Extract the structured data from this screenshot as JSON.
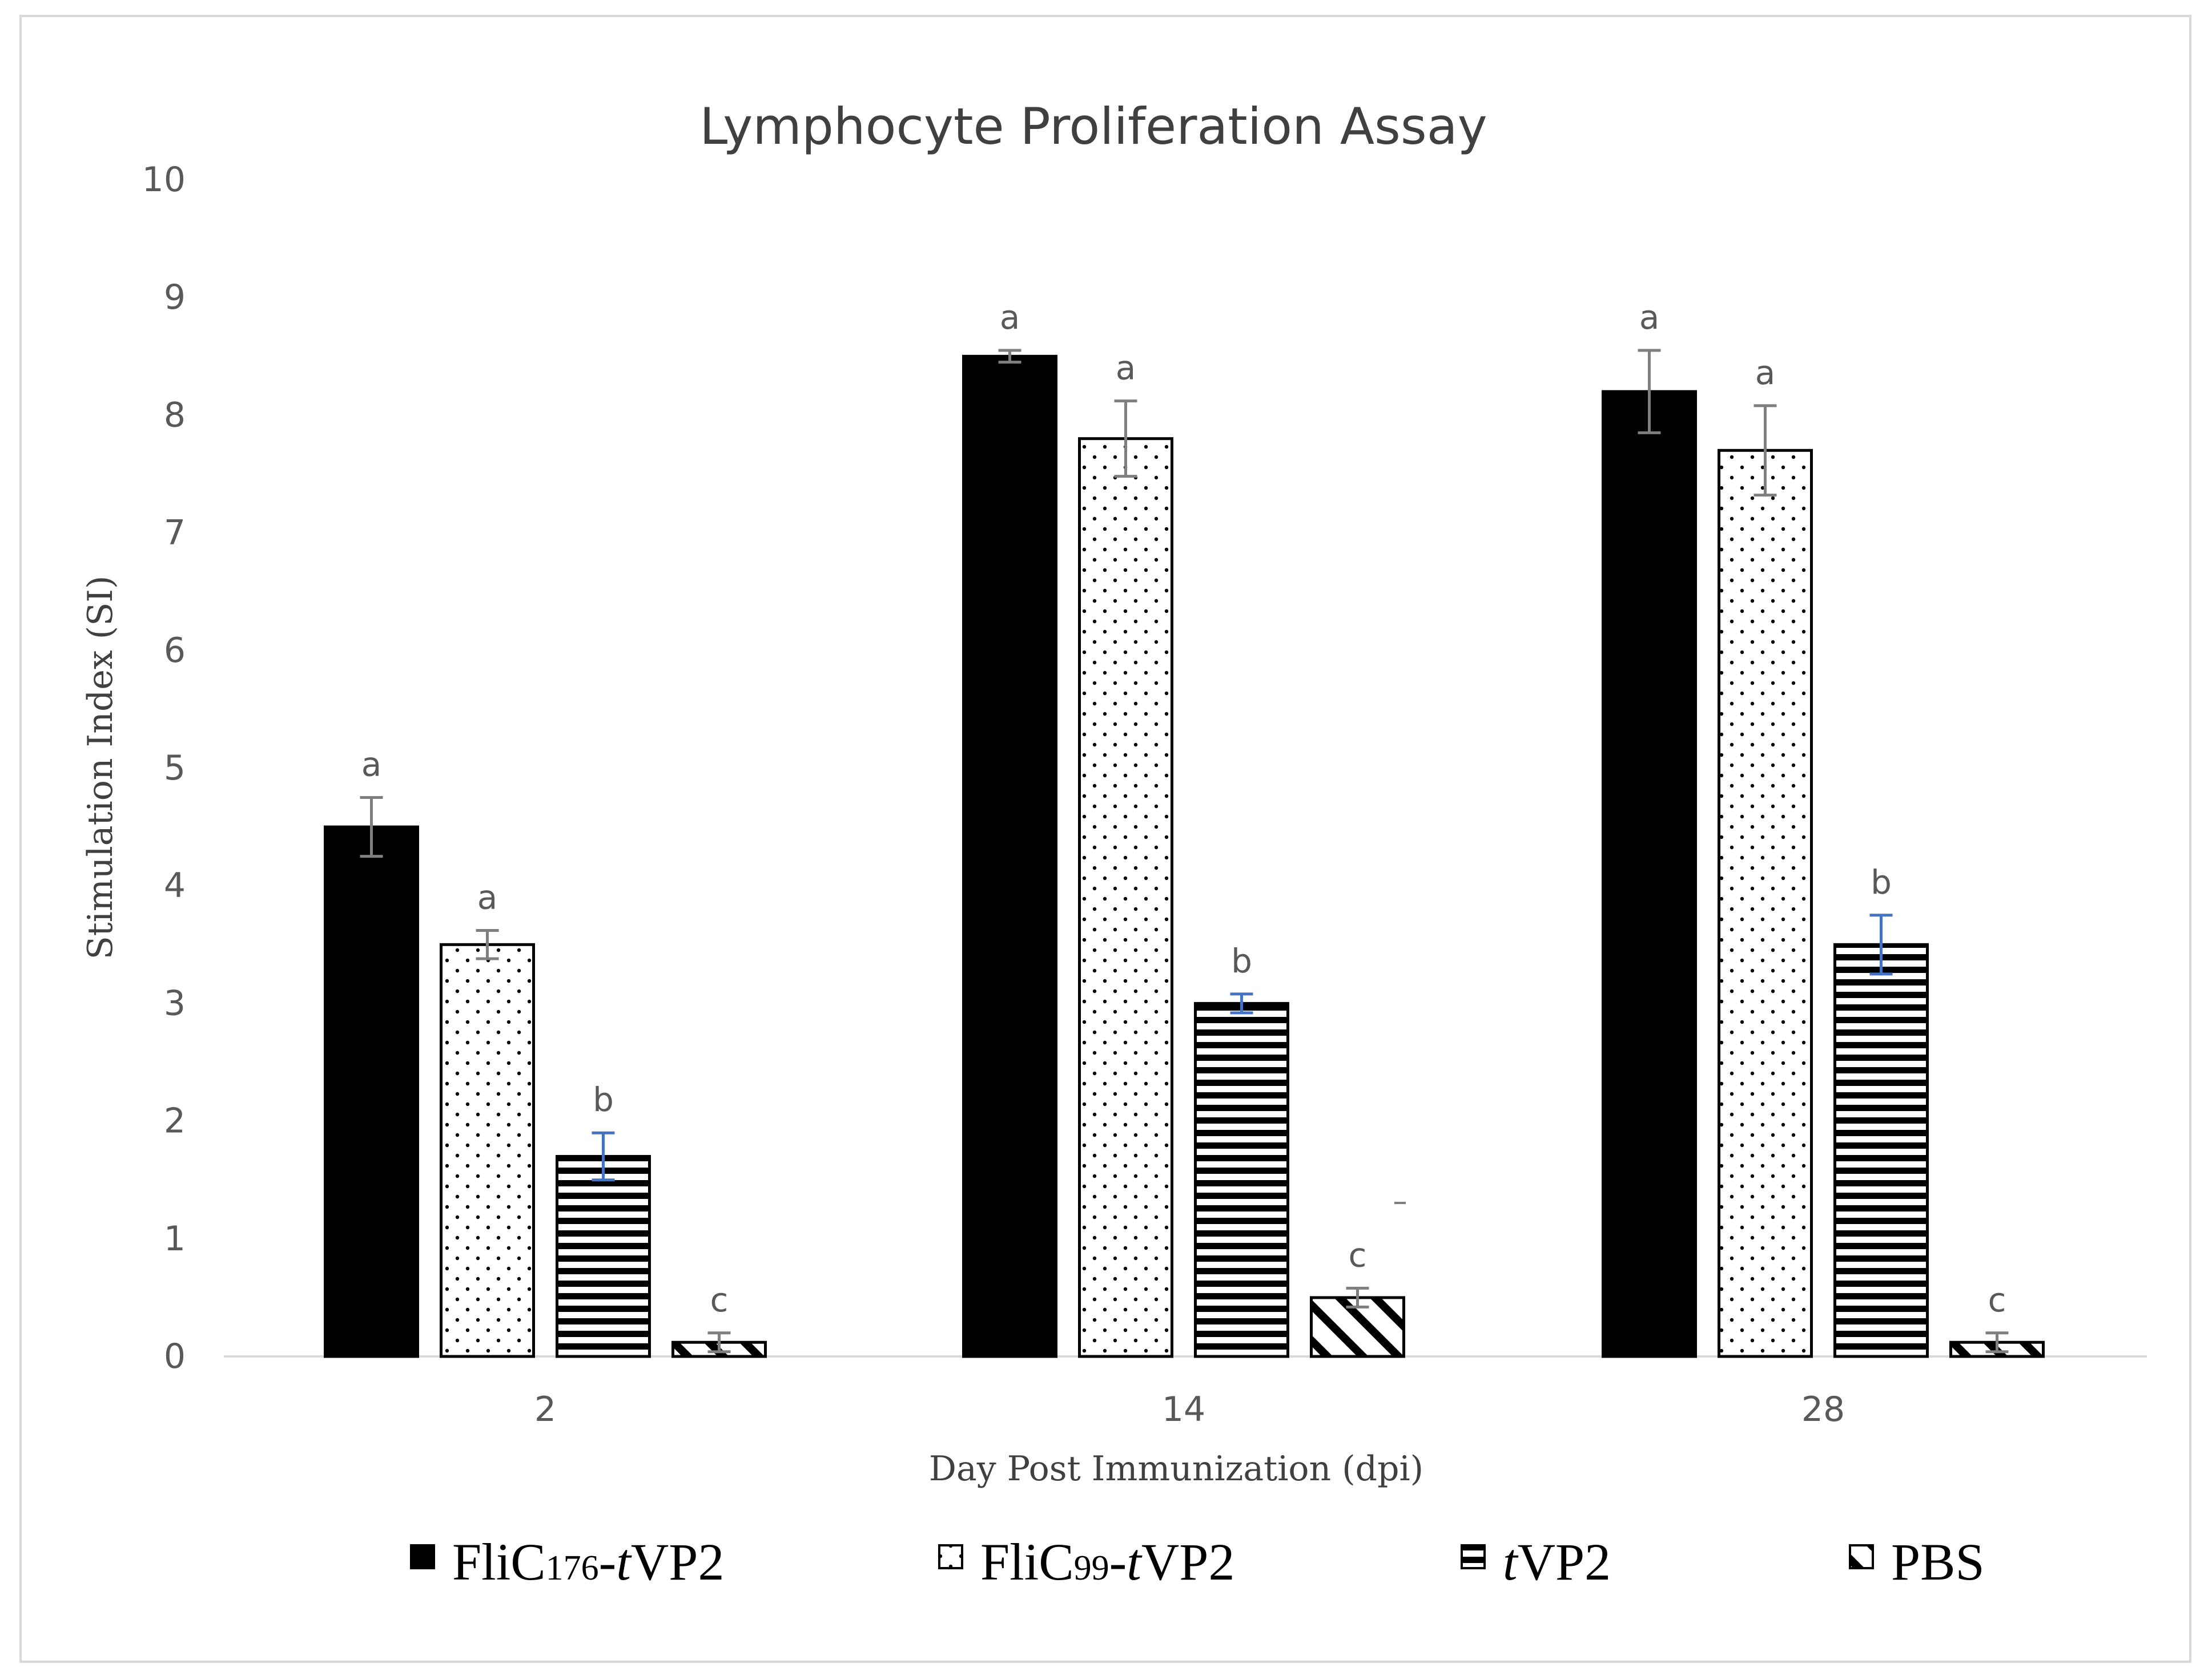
{
  "chart_data": {
    "type": "bar",
    "title": "Lymphocyte Proliferation Assay",
    "xlabel": "Day Post Immunization (dpi)",
    "ylabel": "Stimulation Index (SI)",
    "ylim": [
      0,
      10
    ],
    "yticks": [
      "0",
      "1",
      "2",
      "3",
      "4",
      "5",
      "6",
      "7",
      "8",
      "9",
      "10"
    ],
    "categories": [
      "2",
      "14",
      "28"
    ],
    "series": [
      {
        "name": "FliC176-tVP2",
        "legend_parts": [
          {
            "t": "FliC",
            "s": ""
          },
          {
            "t": "176",
            "s": "sub"
          },
          {
            "t": "-",
            "s": ""
          },
          {
            "t": "t",
            "s": "it"
          },
          {
            "t": "VP2",
            "s": ""
          }
        ],
        "pattern": "solid",
        "values": [
          4.5,
          8.5,
          8.2
        ],
        "errors": [
          0.25,
          0.05,
          0.35
        ],
        "letters": [
          "a",
          "a",
          "a"
        ]
      },
      {
        "name": "FliC99-tVP2",
        "legend_parts": [
          {
            "t": "FliC",
            "s": ""
          },
          {
            "t": "99",
            "s": "sub"
          },
          {
            "t": "-",
            "s": ""
          },
          {
            "t": "t",
            "s": "it"
          },
          {
            "t": "VP2",
            "s": ""
          }
        ],
        "pattern": "dots",
        "values": [
          3.5,
          7.8,
          7.7
        ],
        "errors": [
          0.12,
          0.32,
          0.38
        ],
        "letters": [
          "a",
          "a",
          "a"
        ]
      },
      {
        "name": "tVP2",
        "legend_parts": [
          {
            "t": "t",
            "s": "it"
          },
          {
            "t": "VP2",
            "s": ""
          }
        ],
        "pattern": "hlines",
        "values": [
          1.7,
          3.0,
          3.5
        ],
        "errors": [
          0.2,
          0.08,
          0.25
        ],
        "letters": [
          "b",
          "b",
          "b"
        ]
      },
      {
        "name": "PBS",
        "legend_parts": [
          {
            "t": "PBS",
            "s": ""
          }
        ],
        "pattern": "diag",
        "values": [
          0.12,
          0.5,
          0.12
        ],
        "errors": [
          0.08,
          0.08,
          0.08
        ],
        "letters": [
          "c",
          "c",
          "c"
        ]
      }
    ],
    "legend_position": "bottom",
    "grid": false
  },
  "colors": {
    "bar_fill": "#000000",
    "bar_stroke": "#000000",
    "axis_line": "#d9d9d9",
    "error_bar": "#7f7f7f",
    "error_bar_blue": "#4472c4",
    "text": "#595959"
  }
}
